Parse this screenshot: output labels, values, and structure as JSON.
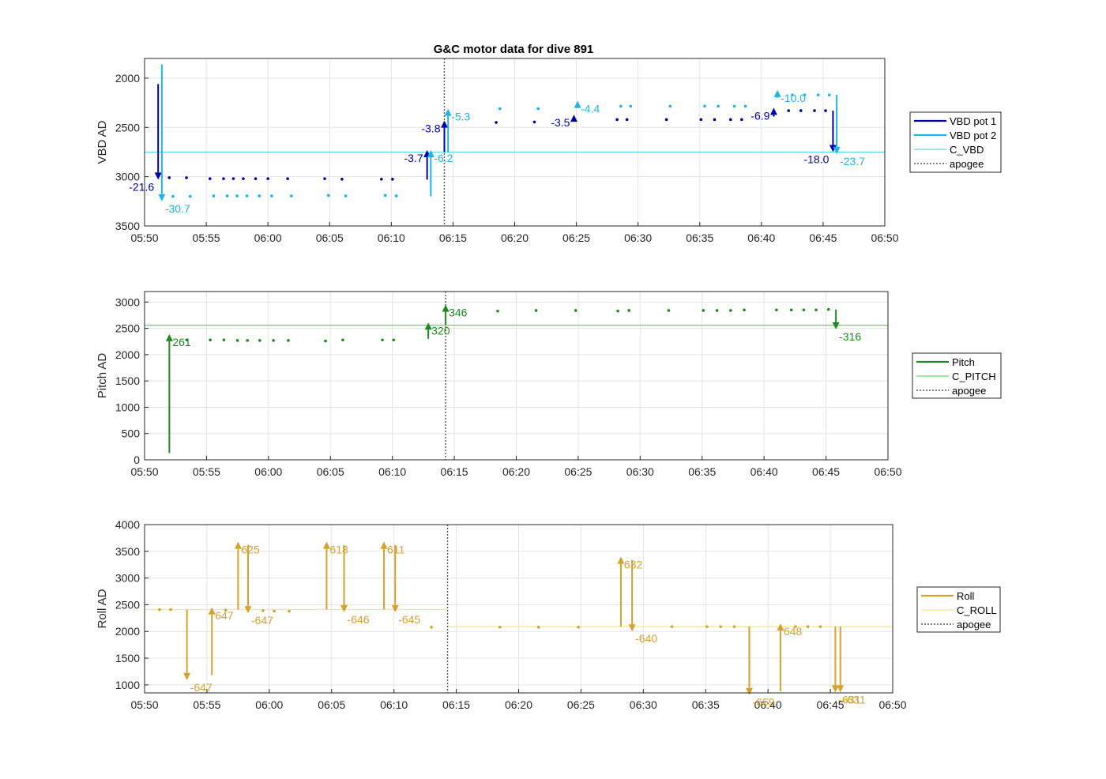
{
  "chart_data": [
    {
      "type": "line",
      "title": "G&C motor data for dive 891",
      "ylabel": "VBD AD",
      "xlabel": "",
      "xlim": [
        "05:50",
        "06:50"
      ],
      "ylim": [
        3500,
        1800
      ],
      "yreversed": true,
      "yticks": [
        2000,
        2500,
        3000,
        3500
      ],
      "xticks": [
        "05:50",
        "05:55",
        "06:00",
        "06:05",
        "06:10",
        "06:15",
        "06:20",
        "06:25",
        "06:30",
        "06:35",
        "06:40",
        "06:45",
        "06:50"
      ],
      "grid": true,
      "legend_position": "right",
      "legend": [
        "VBD pot 1",
        "VBD pot 2",
        "C_VBD",
        "apogee"
      ],
      "colors": {
        "pot1": "#0000aa",
        "pot2": "#1fb4e6",
        "ref": "#5ed8e0",
        "apogee": "#555555"
      },
      "reference": {
        "name": "C_VBD",
        "value": 2750
      },
      "apogee": "06:14.3",
      "series": [
        {
          "name": "VBD pot 1",
          "x": [
            "05:52.0",
            "05:53.4",
            "05:55.3",
            "05:56.4",
            "05:57.2",
            "05:58.0",
            "05:59.0",
            "06:00.0",
            "06:01.6",
            "06:04.6",
            "06:06.0",
            "06:09.2",
            "06:10.1",
            "06:18.5",
            "06:21.6",
            "06:28.3",
            "06:29.1",
            "06:32.3",
            "06:35.1",
            "06:36.2",
            "06:37.5",
            "06:38.4",
            "06:42.2",
            "06:43.2",
            "06:44.3",
            "06:45.2"
          ],
          "values": [
            3010,
            3010,
            3020,
            3020,
            3020,
            3020,
            3020,
            3020,
            3020,
            3020,
            3025,
            3025,
            3025,
            2450,
            2445,
            2420,
            2420,
            2420,
            2420,
            2420,
            2420,
            2420,
            2330,
            2330,
            2330,
            2330
          ]
        },
        {
          "name": "VBD pot 2",
          "x": [
            "05:52.3",
            "05:53.7",
            "05:55.6",
            "05:56.7",
            "05:57.5",
            "05:58.3",
            "05:59.3",
            "06:00.3",
            "06:01.9",
            "06:04.9",
            "06:06.3",
            "06:09.5",
            "06:10.4",
            "06:18.8",
            "06:21.9",
            "06:28.6",
            "06:29.4",
            "06:32.6",
            "06:35.4",
            "06:36.5",
            "06:37.8",
            "06:38.7",
            "06:42.5",
            "06:43.5",
            "06:44.6",
            "06:45.5"
          ],
          "values": [
            3200,
            3200,
            3195,
            3195,
            3195,
            3195,
            3195,
            3195,
            3195,
            3190,
            3195,
            3190,
            3195,
            2310,
            2310,
            2285,
            2285,
            2285,
            2285,
            2285,
            2285,
            2285,
            2170,
            2170,
            2170,
            2170
          ]
        }
      ],
      "moves": [
        {
          "series": "VBD pot 1",
          "x": "05:51.1",
          "from": 2060,
          "to": 3030,
          "label": "-21.6"
        },
        {
          "series": "VBD pot 2",
          "x": "05:51.4",
          "from": 1860,
          "to": 3250,
          "label": "-30.7"
        },
        {
          "series": "VBD pot 1",
          "x": "06:12.9",
          "from": 3030,
          "to": 2730,
          "label": "-3.7"
        },
        {
          "series": "VBD pot 2",
          "x": "06:13.2",
          "from": 3200,
          "to": 2730,
          "label": "-6.2"
        },
        {
          "series": "VBD pot 1",
          "x": "06:14.3",
          "from": 2750,
          "to": 2430,
          "label": "-3.8"
        },
        {
          "series": "VBD pot 2",
          "x": "06:14.6",
          "from": 2750,
          "to": 2310,
          "label": "-5.3"
        },
        {
          "series": "VBD pot 1",
          "x": "06:24.8",
          "from": 2440,
          "to": 2370,
          "label": "-3.5"
        },
        {
          "series": "VBD pot 2",
          "x": "06:25.1",
          "from": 2300,
          "to": 2230,
          "label": "-4.4"
        },
        {
          "series": "VBD pot 1",
          "x": "06:41.0",
          "from": 2390,
          "to": 2300,
          "label": "-6.9"
        },
        {
          "series": "VBD pot 2",
          "x": "06:41.3",
          "from": 2200,
          "to": 2120,
          "label": "-10.0"
        },
        {
          "series": "VBD pot 1",
          "x": "06:45.8",
          "from": 2330,
          "to": 2750,
          "label": "-18.0"
        },
        {
          "series": "VBD pot 2",
          "x": "06:46.1",
          "from": 2170,
          "to": 2770,
          "label": "-23.7"
        }
      ]
    },
    {
      "type": "line",
      "title": "",
      "ylabel": "Pitch AD",
      "xlabel": "",
      "xlim": [
        "05:50",
        "06:50"
      ],
      "ylim": [
        0,
        3200
      ],
      "yreversed": false,
      "yticks": [
        0,
        500,
        1000,
        1500,
        2000,
        2500,
        3000
      ],
      "xticks": [
        "05:50",
        "05:55",
        "06:00",
        "06:05",
        "06:10",
        "06:15",
        "06:20",
        "06:25",
        "06:30",
        "06:35",
        "06:40",
        "06:45",
        "06:50"
      ],
      "grid": true,
      "legend_position": "right",
      "legend": [
        "Pitch",
        "C_PITCH",
        "apogee"
      ],
      "colors": {
        "main": "#1e8a1e",
        "ref": "#5fdc5f",
        "apogee": "#555555"
      },
      "reference": {
        "name": "C_PITCH",
        "value": 2560
      },
      "apogee": "06:14.3",
      "series": [
        {
          "name": "Pitch",
          "x": [
            "05:53.4",
            "05:55.3",
            "05:56.4",
            "05:57.5",
            "05:58.3",
            "05:59.3",
            "06:00.4",
            "06:01.6",
            "06:04.6",
            "06:06.0",
            "06:09.2",
            "06:10.1",
            "06:18.5",
            "06:21.6",
            "06:24.8",
            "06:28.2",
            "06:29.1",
            "06:32.3",
            "06:35.1",
            "06:36.2",
            "06:37.3",
            "06:38.4",
            "06:41.0",
            "06:42.2",
            "06:43.2",
            "06:44.2",
            "06:45.2"
          ],
          "values": [
            2280,
            2280,
            2280,
            2270,
            2270,
            2270,
            2270,
            2270,
            2260,
            2280,
            2280,
            2280,
            2830,
            2840,
            2840,
            2830,
            2840,
            2840,
            2840,
            2840,
            2840,
            2850,
            2850,
            2850,
            2850,
            2850,
            2860
          ]
        }
      ],
      "moves": [
        {
          "series": "Pitch",
          "x": "05:52.0",
          "from": 130,
          "to": 2390,
          "label": "261"
        },
        {
          "series": "Pitch",
          "x": "06:12.9",
          "from": 2300,
          "to": 2610,
          "label": "320"
        },
        {
          "series": "Pitch",
          "x": "06:14.3",
          "from": 2560,
          "to": 2950,
          "label": "346"
        },
        {
          "series": "Pitch",
          "x": "06:45.8",
          "from": 2860,
          "to": 2480,
          "label": "-316"
        }
      ]
    },
    {
      "type": "line",
      "title": "",
      "ylabel": "Roll AD",
      "xlabel": "",
      "xlim": [
        "05:50",
        "06:50"
      ],
      "ylim": [
        850,
        4000
      ],
      "yreversed": false,
      "yticks": [
        1000,
        1500,
        2000,
        2500,
        3000,
        3500,
        4000
      ],
      "xticks": [
        "05:50",
        "05:55",
        "06:00",
        "06:05",
        "06:10",
        "06:15",
        "06:20",
        "06:25",
        "06:30",
        "06:35",
        "06:40",
        "06:45",
        "06:50"
      ],
      "grid": true,
      "legend_position": "right",
      "legend": [
        "Roll",
        "C_ROLL",
        "apogee"
      ],
      "colors": {
        "main": "#d4a32a",
        "ref": "#f5ec70",
        "apogee": "#555555"
      },
      "reference_segments": [
        {
          "name": "C_ROLL",
          "from": "05:50",
          "to": "06:14.3",
          "value": 2410
        },
        {
          "name": "C_ROLL",
          "from": "06:14.3",
          "to": "06:50",
          "value": 2090
        }
      ],
      "apogee": "06:14.3",
      "series": [
        {
          "name": "Roll",
          "x": [
            "05:51.2",
            "05:52.1",
            "05:56.5",
            "05:59.5",
            "06:00.4",
            "06:01.6",
            "06:13.0",
            "06:18.5",
            "06:21.6",
            "06:24.8",
            "06:32.3",
            "06:35.1",
            "06:36.2",
            "06:37.3",
            "06:42.2",
            "06:43.2",
            "06:44.2"
          ],
          "values": [
            2410,
            2410,
            2400,
            2390,
            2380,
            2380,
            2080,
            2080,
            2080,
            2080,
            2090,
            2090,
            2090,
            2090,
            2090,
            2090,
            2090
          ]
        }
      ],
      "moves": [
        {
          "series": "Roll",
          "x": "05:53.4",
          "from": 2410,
          "to": 1090,
          "label": "-647"
        },
        {
          "series": "Roll",
          "x": "05:55.4",
          "from": 1180,
          "to": 2450,
          "label": "647"
        },
        {
          "series": "Roll",
          "x": "05:57.5",
          "from": 2410,
          "to": 3680,
          "label": "625"
        },
        {
          "series": "Roll",
          "x": "05:58.3",
          "from": 3620,
          "to": 2340,
          "label": "-647"
        },
        {
          "series": "Roll",
          "x": "06:04.6",
          "from": 2410,
          "to": 3680,
          "label": "618"
        },
        {
          "series": "Roll",
          "x": "06:06.0",
          "from": 3620,
          "to": 2360,
          "label": "-646"
        },
        {
          "series": "Roll",
          "x": "06:09.2",
          "from": 2410,
          "to": 3680,
          "label": "611"
        },
        {
          "series": "Roll",
          "x": "06:10.1",
          "from": 3620,
          "to": 2360,
          "label": "-645"
        },
        {
          "series": "Roll",
          "x": "06:28.2",
          "from": 2090,
          "to": 3400,
          "label": "632"
        },
        {
          "series": "Roll",
          "x": "06:29.1",
          "from": 3340,
          "to": 2000,
          "label": "-640"
        },
        {
          "series": "Roll",
          "x": "06:38.5",
          "from": 2090,
          "to": 810,
          "label": "-669"
        },
        {
          "series": "Roll",
          "x": "06:41.0",
          "from": 880,
          "to": 2150,
          "label": "648"
        },
        {
          "series": "Roll",
          "x": "06:45.4",
          "from": 2090,
          "to": 860,
          "label": "-631"
        },
        {
          "series": "Roll",
          "x": "06:45.8",
          "from": 2090,
          "to": 860,
          "label": "-631"
        }
      ]
    }
  ]
}
